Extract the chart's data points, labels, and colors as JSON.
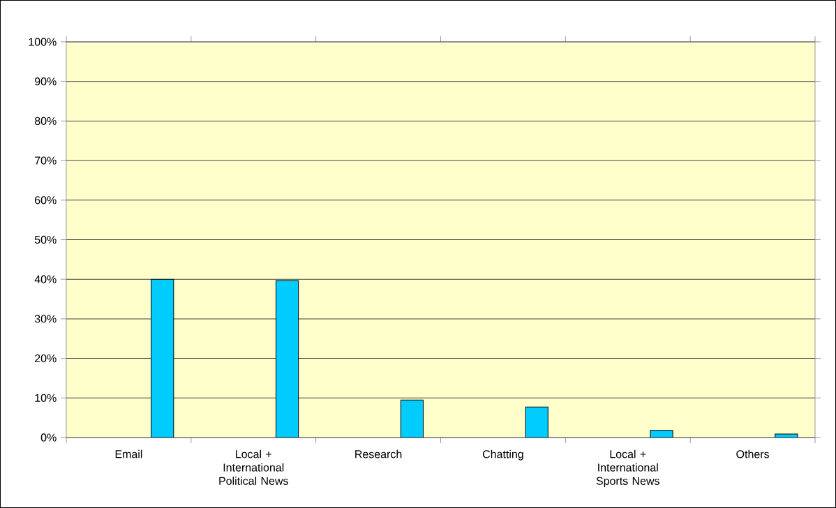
{
  "chart_data": {
    "type": "bar",
    "categories": [
      "Email",
      "Local + International Political News",
      "Research",
      "Chatting",
      "Local + International Sports News",
      "Others"
    ],
    "values": [
      40,
      39.7,
      9.5,
      7.7,
      1.8,
      0.9
    ],
    "color": "#00ccff",
    "ylim": [
      0,
      100
    ],
    "yticks": [
      {
        "value": 0,
        "label": "0%"
      },
      {
        "value": 10,
        "label": "10%"
      },
      {
        "value": 20,
        "label": "20%"
      },
      {
        "value": 30,
        "label": "30%"
      },
      {
        "value": 40,
        "label": "40%"
      },
      {
        "value": 50,
        "label": "50%"
      },
      {
        "value": 60,
        "label": "60%"
      },
      {
        "value": 70,
        "label": "70%"
      },
      {
        "value": 80,
        "label": "80%"
      },
      {
        "value": 90,
        "label": "90%"
      },
      {
        "value": 100,
        "label": "100%"
      }
    ],
    "grid": "y"
  }
}
